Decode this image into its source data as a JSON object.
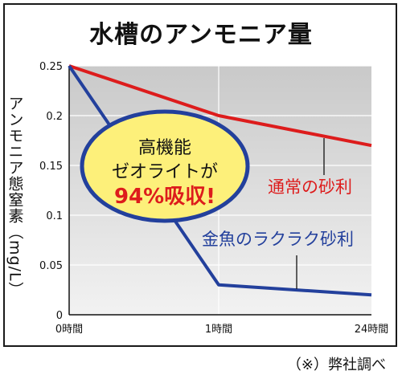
{
  "chart_data": {
    "type": "line",
    "title": "水槽のアンモニア量",
    "ylabel": "アンモニア態窒素（mg/L）",
    "xlabel": "",
    "categories": [
      "0時間",
      "1時間",
      "24時間"
    ],
    "yticks": [
      "0",
      "0.05",
      "0.1",
      "0.15",
      "0.2",
      "0.25"
    ],
    "ylim": [
      0,
      0.25
    ],
    "grid": true,
    "series": [
      {
        "name": "通常の砂利",
        "values": [
          0.25,
          0.2,
          0.17
        ],
        "color": "#dd1c1c"
      },
      {
        "name": "金魚のラクラク砂利",
        "values": [
          0.25,
          0.03,
          0.02
        ],
        "color": "#23409c"
      }
    ],
    "callout": {
      "line1": "高機能",
      "line2": "ゼオライトが",
      "line3": "94%吸収!",
      "fill": "#fdf07a",
      "border": "#23409c",
      "accent": "#dd1c1c"
    },
    "note": "（※）弊社調べ"
  }
}
